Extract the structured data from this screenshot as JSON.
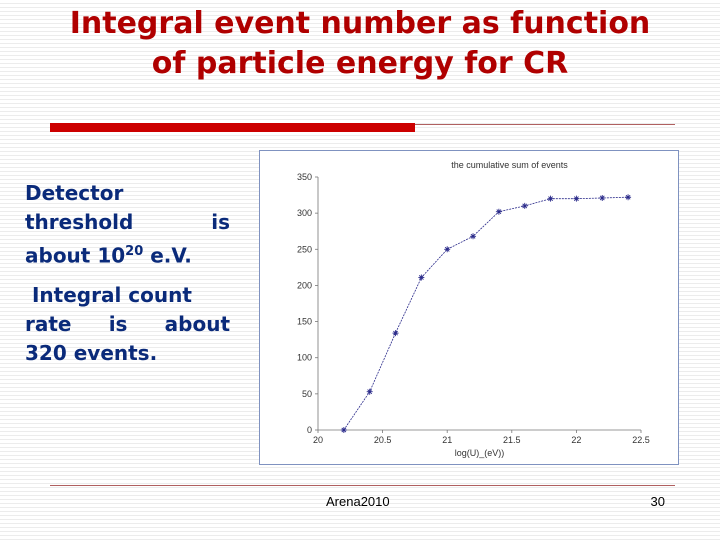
{
  "slide": {
    "title_line1": "Integral event number as function",
    "title_line2": "of particle energy for CR",
    "footer_left": "Arena2010",
    "page_number": "30",
    "colors": {
      "title": "#b00000",
      "body_text": "#0a2a7a",
      "accent_bar": "#cc0000"
    }
  },
  "text": {
    "p1_line1": "Detector",
    "p1_line2_a": "threshold",
    "p1_line2_b": "is",
    "p1_line3_a": "about 10",
    "p1_sup": "20",
    "p1_line3_b": " e.V.",
    "p2_line1": " Integral count",
    "p2_line2_a": "rate",
    "p2_line2_b": "is",
    "p2_line2_c": "about",
    "p2_line3": "320 events."
  },
  "chart_data": {
    "type": "line",
    "title": "the cumulative sum of events",
    "xlabel": "log(U)_(eV))",
    "ylabel": "",
    "xlim": [
      20,
      22.5
    ],
    "ylim": [
      0,
      350
    ],
    "x_ticks": [
      20,
      20.5,
      21,
      21.5,
      22,
      22.5
    ],
    "x_tick_labels": [
      "20",
      "20.5",
      "21",
      "21.5",
      "22",
      "22.5"
    ],
    "y_ticks": [
      0,
      50,
      100,
      150,
      200,
      250,
      300,
      350
    ],
    "y_tick_labels": [
      "0",
      "50",
      "100",
      "150",
      "200",
      "250",
      "300",
      "350"
    ],
    "grid": false,
    "series": [
      {
        "color": "#2a2a8a",
        "x": [
          20.2,
          20.4,
          20.6,
          20.8,
          21.0,
          21.2,
          21.4,
          21.6,
          21.8,
          22.0,
          22.2,
          22.4
        ],
        "y": [
          0,
          53,
          134,
          211,
          250,
          268,
          302,
          310,
          320,
          320,
          321,
          322
        ]
      }
    ]
  }
}
